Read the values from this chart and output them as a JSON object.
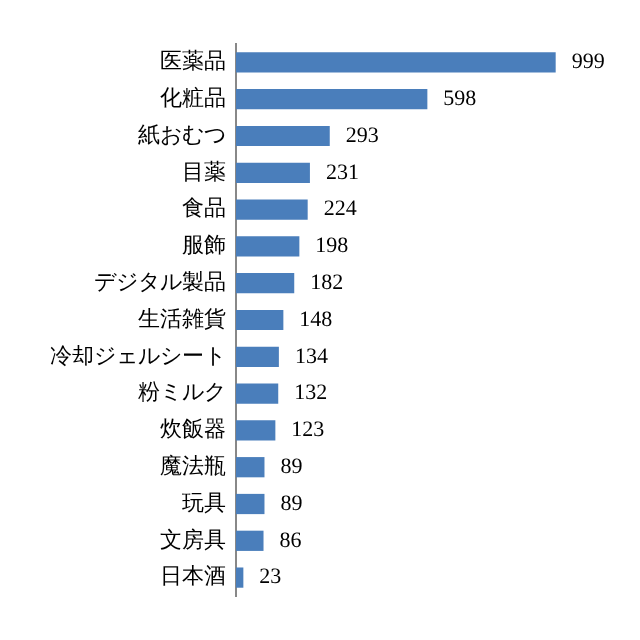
{
  "chart_data": {
    "type": "bar",
    "orientation": "horizontal",
    "categories": [
      "医薬品",
      "化粧品",
      "紙おむつ",
      "目薬",
      "食品",
      "服飾",
      "デジタル製品",
      "生活雑貨",
      "冷却ジェルシート",
      "粉ミルク",
      "炊飯器",
      "魔法瓶",
      "玩具",
      "文房具",
      "日本酒"
    ],
    "values": [
      999,
      598,
      293,
      231,
      224,
      198,
      182,
      148,
      134,
      132,
      123,
      89,
      89,
      86,
      23
    ],
    "color": "#4a7ebb",
    "data_labels": true
  }
}
